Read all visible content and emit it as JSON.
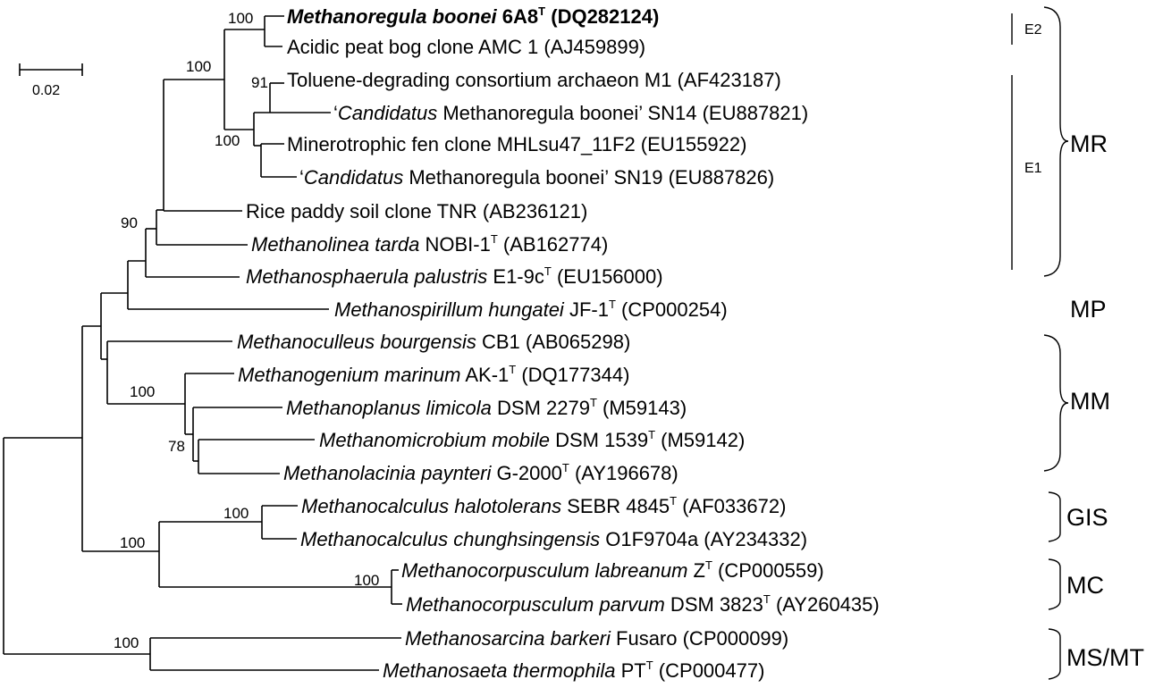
{
  "scale_bar": {
    "label": "0.02"
  },
  "leaves": [
    {
      "id": "boonei6A8",
      "parts": [
        {
          "t": "Methanoregula boonei",
          "i": true,
          "b": true
        },
        {
          "t": " 6A8",
          "b": true
        },
        {
          "t": "T",
          "sup": true,
          "b": true
        },
        {
          "t": " (DQ282124)",
          "b": true
        }
      ]
    },
    {
      "id": "amc1",
      "parts": [
        {
          "t": "Acidic peat bog clone AMC 1 (AJ459899)"
        }
      ]
    },
    {
      "id": "m1",
      "parts": [
        {
          "t": "Toluene-degrading consortium archaeon M1 (AF423187)"
        }
      ]
    },
    {
      "id": "sn14",
      "parts": [
        {
          "t": "‘"
        },
        {
          "t": "Candidatus",
          "i": true
        },
        {
          "t": " Methanoregula boonei’ SN14 (EU887821)"
        }
      ]
    },
    {
      "id": "mhl",
      "parts": [
        {
          "t": "Minerotrophic fen clone MHLsu47_11F2 (EU155922)"
        }
      ]
    },
    {
      "id": "sn19",
      "parts": [
        {
          "t": "‘"
        },
        {
          "t": "Candidatus",
          "i": true
        },
        {
          "t": " Methanoregula boonei’ SN19 (EU887826)"
        }
      ]
    },
    {
      "id": "tnr",
      "parts": [
        {
          "t": "Rice paddy soil clone TNR (AB236121)"
        }
      ]
    },
    {
      "id": "linea",
      "parts": [
        {
          "t": "Methanolinea tarda",
          "i": true
        },
        {
          "t": " NOBI-1"
        },
        {
          "t": "T",
          "sup": true
        },
        {
          "t": " (AB162774)"
        }
      ]
    },
    {
      "id": "sphaer",
      "parts": [
        {
          "t": "Methanosphaerula palustris",
          "i": true
        },
        {
          "t": " E1-9c"
        },
        {
          "t": "T",
          "sup": true
        },
        {
          "t": " (EU156000)"
        }
      ]
    },
    {
      "id": "spir",
      "parts": [
        {
          "t": "Methanospirillum hungatei",
          "i": true
        },
        {
          "t": " JF-1"
        },
        {
          "t": "T",
          "sup": true
        },
        {
          "t": " (CP000254)"
        }
      ]
    },
    {
      "id": "cull",
      "parts": [
        {
          "t": "Methanoculleus bourgensis",
          "i": true
        },
        {
          "t": " CB1 (AB065298)"
        }
      ]
    },
    {
      "id": "gen",
      "parts": [
        {
          "t": "Methanogenium marinum",
          "i": true
        },
        {
          "t": " AK-1"
        },
        {
          "t": "T",
          "sup": true
        },
        {
          "t": " (DQ177344)"
        }
      ]
    },
    {
      "id": "plan",
      "parts": [
        {
          "t": "Methanoplanus limicola",
          "i": true
        },
        {
          "t": " DSM 2279"
        },
        {
          "t": "T",
          "sup": true
        },
        {
          "t": " (M59143)"
        }
      ]
    },
    {
      "id": "micro",
      "parts": [
        {
          "t": "Methanomicrobium mobile",
          "i": true
        },
        {
          "t": " DSM 1539"
        },
        {
          "t": "T",
          "sup": true
        },
        {
          "t": " (M59142)"
        }
      ]
    },
    {
      "id": "lac",
      "parts": [
        {
          "t": "Methanolacinia paynteri",
          "i": true
        },
        {
          "t": " G-2000"
        },
        {
          "t": "T",
          "sup": true
        },
        {
          "t": " (AY196678)"
        }
      ]
    },
    {
      "id": "calh",
      "parts": [
        {
          "t": "Methanocalculus halotolerans",
          "i": true
        },
        {
          "t": " SEBR 4845"
        },
        {
          "t": "T",
          "sup": true
        },
        {
          "t": " (AF033672)"
        }
      ]
    },
    {
      "id": "calc",
      "parts": [
        {
          "t": "Methanocalculus chunghsingensis",
          "i": true
        },
        {
          "t": " O1F9704a (AY234332)"
        }
      ]
    },
    {
      "id": "corl",
      "parts": [
        {
          "t": "Methanocorpusculum labreanum",
          "i": true
        },
        {
          "t": " Z"
        },
        {
          "t": "T",
          "sup": true
        },
        {
          "t": " (CP000559)"
        }
      ]
    },
    {
      "id": "corp",
      "parts": [
        {
          "t": "Methanocorpusculum parvum",
          "i": true
        },
        {
          "t": " DSM 3823"
        },
        {
          "t": "T",
          "sup": true
        },
        {
          "t": " (AY260435)"
        }
      ]
    },
    {
      "id": "sarc",
      "parts": [
        {
          "t": "Methanosarcina barkeri",
          "i": true
        },
        {
          "t": " Fusaro (CP000099)"
        }
      ]
    },
    {
      "id": "saeta",
      "parts": [
        {
          "t": "Methanosaeta thermophila",
          "i": true
        },
        {
          "t": " PT"
        },
        {
          "t": "T",
          "sup": true
        },
        {
          "t": " (CP000477)"
        }
      ]
    }
  ],
  "bootstrap": [
    "100",
    "100",
    "91",
    "100",
    "90",
    "100",
    "78",
    "100",
    "100",
    "100",
    "100"
  ],
  "groups": [
    "E2",
    "E1",
    "MR",
    "MP",
    "MM",
    "GIS",
    "MC",
    "MS/MT"
  ]
}
